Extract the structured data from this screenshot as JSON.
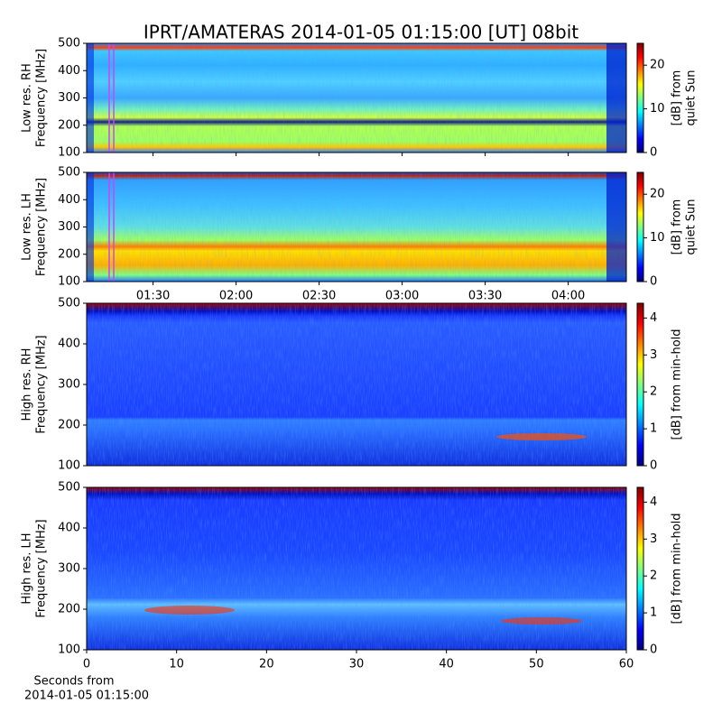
{
  "chart_data": [
    {
      "type": "heatmap",
      "title": "IPRT/AMATERAS 2014-01-05 01:15:00 [UT]   08bit",
      "ylabel": [
        "Low res. RH",
        "Frequency [MHz]"
      ],
      "ylim": [
        100,
        500
      ],
      "yticks": [
        100,
        200,
        300,
        400,
        500
      ],
      "colormap": "jet",
      "clim": [
        0,
        25
      ],
      "cticks": [
        0,
        10,
        20
      ],
      "clabel": [
        "[dB] from",
        "quiet Sun"
      ]
    },
    {
      "type": "heatmap",
      "ylabel": [
        "Low res. LH",
        "Frequency [MHz]"
      ],
      "ylim": [
        100,
        500
      ],
      "yticks": [
        100,
        200,
        300,
        400,
        500
      ],
      "xlim": [
        66,
        261
      ],
      "xticks": [
        {
          "value": 90,
          "label": "01:30"
        },
        {
          "value": 120,
          "label": "02:00"
        },
        {
          "value": 150,
          "label": "02:30"
        },
        {
          "value": 180,
          "label": "03:00"
        },
        {
          "value": 210,
          "label": "03:30"
        },
        {
          "value": 240,
          "label": "04:00"
        }
      ],
      "colormap": "jet",
      "clim": [
        0,
        25
      ],
      "cticks": [
        0,
        10,
        20
      ],
      "clabel": [
        "[dB] from",
        "quiet Sun"
      ]
    },
    {
      "type": "heatmap",
      "ylabel": [
        "High res. RH",
        "Frequency [MHz]"
      ],
      "ylim": [
        100,
        500
      ],
      "yticks": [
        100,
        200,
        300,
        400,
        500
      ],
      "colormap": "jet",
      "clim": [
        0,
        4.4
      ],
      "cticks": [
        0,
        1,
        2,
        3,
        4
      ],
      "clabel": [
        "[dB] from min-hold"
      ]
    },
    {
      "type": "heatmap",
      "ylabel": [
        "High res. LH",
        "Frequency [MHz]"
      ],
      "ylim": [
        100,
        500
      ],
      "yticks": [
        100,
        200,
        300,
        400,
        500
      ],
      "xlim": [
        0,
        60
      ],
      "xticks": [
        0,
        10,
        20,
        30,
        40,
        50,
        60
      ],
      "xlabel": [
        "Seconds from",
        "2014-01-05 01:15:00"
      ],
      "colormap": "jet",
      "clim": [
        0,
        4.4
      ],
      "cticks": [
        0,
        1,
        2,
        3,
        4
      ],
      "clabel": [
        "[dB] from min-hold"
      ]
    }
  ]
}
